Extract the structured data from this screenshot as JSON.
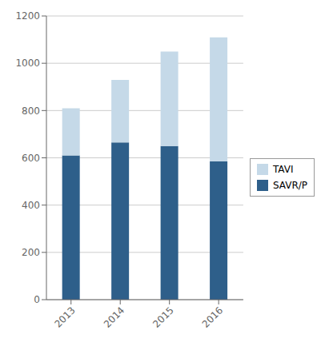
{
  "chart_data": {
    "type": "bar",
    "stacked": true,
    "categories": [
      "2013",
      "2014",
      "2015",
      "2016"
    ],
    "series": [
      {
        "name": "SAVR/P",
        "color": "#2E5F8A",
        "values": [
          610,
          665,
          650,
          585
        ]
      },
      {
        "name": "TAVI",
        "color": "#C5D9E8",
        "values": [
          200,
          265,
          400,
          525
        ]
      }
    ],
    "ylim": [
      0,
      1200
    ],
    "yticks": [
      0,
      200,
      400,
      600,
      800,
      1000,
      1200
    ],
    "grid": true,
    "legend": "right"
  }
}
